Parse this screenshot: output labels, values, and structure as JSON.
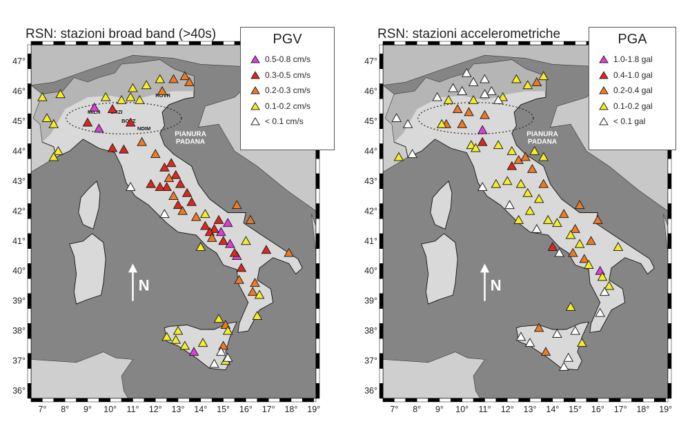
{
  "panels": [
    {
      "title": "RSN: stazioni broad band (>40s)",
      "legend_title": "PGV",
      "legend": [
        {
          "label": "0.5-0.8 cm/s",
          "color": "#e23cdc"
        },
        {
          "label": "0.3-0.5 cm/s",
          "color": "#e0261a"
        },
        {
          "label": "0.2-0.3 cm/s",
          "color": "#ef7a22"
        },
        {
          "label": "0.1-0.2 cm/s",
          "color": "#f4ee22"
        },
        {
          "label": "< 0.1 cm/s",
          "color": "#ffffff"
        }
      ],
      "map_labels": {
        "region_1": "PIANURA",
        "region_2": "PADANA",
        "north": "N"
      },
      "station_labels": [
        "MILN",
        "ORZI",
        "BOZZ",
        "NDIM",
        "ROVR"
      ]
    },
    {
      "title": "RSN: stazioni accelerometriche",
      "legend_title": "PGA",
      "legend": [
        {
          "label": "1.0-1.8 gal",
          "color": "#e23cdc"
        },
        {
          "label": "0.4-1.0 gal",
          "color": "#e0261a"
        },
        {
          "label": "0.2-0.4 gal",
          "color": "#ef7a22"
        },
        {
          "label": "0.1-0.2 gal",
          "color": "#f4ee22"
        },
        {
          "label": "< 0.1 gal",
          "color": "#ffffff"
        }
      ],
      "map_labels": {
        "region_1": "PIANURA",
        "region_2": "PADANA",
        "north": "N"
      },
      "station_labels": []
    }
  ],
  "axes": {
    "lon_ticks": [
      "7°",
      "8°",
      "9°",
      "10°",
      "11°",
      "12°",
      "13°",
      "14°",
      "15°",
      "16°",
      "17°",
      "18°",
      "19°"
    ],
    "lat_ticks": [
      "47°",
      "46°",
      "45°",
      "44°",
      "43°",
      "42°",
      "41°",
      "40°",
      "39°",
      "38°",
      "37°",
      "36°"
    ]
  },
  "colors": {
    "sea": "#858585",
    "land": "#d9d9d9",
    "alps": "#b5b5b5",
    "frame": "#000000"
  },
  "stations": [
    [
      {
        "lon": 9.3,
        "lat": 45.45,
        "c": 0
      },
      {
        "lon": 9.5,
        "lat": 44.75,
        "c": 0
      },
      {
        "lon": 14.9,
        "lat": 41.3,
        "c": 0
      },
      {
        "lon": 15.3,
        "lat": 40.9,
        "c": 0
      },
      {
        "lon": 15.6,
        "lat": 40.5,
        "c": 0
      },
      {
        "lon": 13.7,
        "lat": 37.3,
        "c": 0
      },
      {
        "lon": 15.2,
        "lat": 41.6,
        "c": 0
      },
      {
        "lon": 10.1,
        "lat": 45.4,
        "c": 1
      },
      {
        "lon": 10.9,
        "lat": 44.95,
        "c": 1
      },
      {
        "lon": 9.0,
        "lat": 44.95,
        "c": 1
      },
      {
        "lon": 10.1,
        "lat": 44.1,
        "c": 1
      },
      {
        "lon": 10.6,
        "lat": 44.05,
        "c": 1
      },
      {
        "lon": 12.4,
        "lat": 43.45,
        "c": 1
      },
      {
        "lon": 12.7,
        "lat": 43.6,
        "c": 1
      },
      {
        "lon": 12.9,
        "lat": 43.2,
        "c": 1
      },
      {
        "lon": 13.1,
        "lat": 42.9,
        "c": 1
      },
      {
        "lon": 12.5,
        "lat": 42.8,
        "c": 1
      },
      {
        "lon": 11.8,
        "lat": 42.9,
        "c": 1
      },
      {
        "lon": 13.4,
        "lat": 42.6,
        "c": 1
      },
      {
        "lon": 12.2,
        "lat": 42.8,
        "c": 1
      },
      {
        "lon": 13.6,
        "lat": 42.3,
        "c": 1
      },
      {
        "lon": 14.2,
        "lat": 41.5,
        "c": 1
      },
      {
        "lon": 14.6,
        "lat": 41.4,
        "c": 1
      },
      {
        "lon": 15.0,
        "lat": 41.0,
        "c": 1
      },
      {
        "lon": 15.5,
        "lat": 40.6,
        "c": 1
      },
      {
        "lon": 14.8,
        "lat": 41.7,
        "c": 1
      },
      {
        "lon": 14.4,
        "lat": 41.3,
        "c": 1
      },
      {
        "lon": 16.9,
        "lat": 40.7,
        "c": 1
      },
      {
        "lon": 15.8,
        "lat": 40.1,
        "c": 1
      },
      {
        "lon": 13.0,
        "lat": 42.2,
        "c": 1
      },
      {
        "lon": 12.8,
        "lat": 46.4,
        "c": 2
      },
      {
        "lon": 13.3,
        "lat": 46.5,
        "c": 2
      },
      {
        "lon": 13.5,
        "lat": 46.3,
        "c": 2
      },
      {
        "lon": 12.3,
        "lat": 46.0,
        "c": 2
      },
      {
        "lon": 11.4,
        "lat": 44.3,
        "c": 2
      },
      {
        "lon": 12.0,
        "lat": 43.9,
        "c": 2
      },
      {
        "lon": 12.6,
        "lat": 43.1,
        "c": 2
      },
      {
        "lon": 13.2,
        "lat": 42.0,
        "c": 2
      },
      {
        "lon": 13.8,
        "lat": 41.8,
        "c": 2
      },
      {
        "lon": 14.5,
        "lat": 41.1,
        "c": 2
      },
      {
        "lon": 15.6,
        "lat": 42.2,
        "c": 2
      },
      {
        "lon": 16.2,
        "lat": 41.7,
        "c": 2
      },
      {
        "lon": 15.7,
        "lat": 39.7,
        "c": 2
      },
      {
        "lon": 16.3,
        "lat": 39.3,
        "c": 2
      },
      {
        "lon": 16.4,
        "lat": 39.6,
        "c": 2
      },
      {
        "lon": 17.9,
        "lat": 40.6,
        "c": 2
      },
      {
        "lon": 15.1,
        "lat": 38.2,
        "c": 2
      },
      {
        "lon": 15.0,
        "lat": 37.5,
        "c": 2
      },
      {
        "lon": 14.0,
        "lat": 40.8,
        "c": 2
      },
      {
        "lon": 12.8,
        "lat": 42.5,
        "c": 2
      },
      {
        "lon": 7.2,
        "lat": 45.1,
        "c": 3
      },
      {
        "lon": 7.8,
        "lat": 45.9,
        "c": 3
      },
      {
        "lon": 7.0,
        "lat": 45.8,
        "c": 3
      },
      {
        "lon": 7.5,
        "lat": 44.9,
        "c": 3
      },
      {
        "lon": 7.7,
        "lat": 44.0,
        "c": 3
      },
      {
        "lon": 7.5,
        "lat": 43.8,
        "c": 3
      },
      {
        "lon": 10.5,
        "lat": 45.7,
        "c": 3
      },
      {
        "lon": 11.0,
        "lat": 46.1,
        "c": 3
      },
      {
        "lon": 10.9,
        "lat": 45.8,
        "c": 3
      },
      {
        "lon": 11.3,
        "lat": 45.7,
        "c": 3
      },
      {
        "lon": 11.6,
        "lat": 46.2,
        "c": 3
      },
      {
        "lon": 12.2,
        "lat": 46.4,
        "c": 3
      },
      {
        "lon": 9.8,
        "lat": 45.8,
        "c": 3
      },
      {
        "lon": 14.2,
        "lat": 41.9,
        "c": 3
      },
      {
        "lon": 16.0,
        "lat": 41.0,
        "c": 3
      },
      {
        "lon": 16.6,
        "lat": 39.2,
        "c": 3
      },
      {
        "lon": 16.5,
        "lat": 38.5,
        "c": 3
      },
      {
        "lon": 15.2,
        "lat": 38.0,
        "c": 3
      },
      {
        "lon": 14.8,
        "lat": 38.4,
        "c": 3
      },
      {
        "lon": 12.5,
        "lat": 37.8,
        "c": 3
      },
      {
        "lon": 12.9,
        "lat": 37.7,
        "c": 3
      },
      {
        "lon": 13.3,
        "lat": 37.5,
        "c": 3
      },
      {
        "lon": 14.1,
        "lat": 37.6,
        "c": 3
      },
      {
        "lon": 13.0,
        "lat": 38.0,
        "c": 3
      },
      {
        "lon": 14.0,
        "lat": 40.8,
        "c": 3
      },
      {
        "lon": 15.1,
        "lat": 37.0,
        "c": 3
      },
      {
        "lon": 10.9,
        "lat": 42.8,
        "c": 4
      },
      {
        "lon": 12.4,
        "lat": 41.9,
        "c": 4
      },
      {
        "lon": 14.9,
        "lat": 37.3,
        "c": 4
      },
      {
        "lon": 14.6,
        "lat": 36.9,
        "c": 4
      },
      {
        "lon": 15.2,
        "lat": 37.1,
        "c": 4
      }
    ],
    [
      {
        "lon": 10.9,
        "lat": 44.7,
        "c": 0
      },
      {
        "lon": 16.1,
        "lat": 40.0,
        "c": 0
      },
      {
        "lon": 10.9,
        "lat": 44.3,
        "c": 1
      },
      {
        "lon": 14.0,
        "lat": 40.8,
        "c": 1
      },
      {
        "lon": 12.2,
        "lat": 43.5,
        "c": 1
      },
      {
        "lon": 9.8,
        "lat": 45.4,
        "c": 2
      },
      {
        "lon": 10.3,
        "lat": 45.3,
        "c": 2
      },
      {
        "lon": 11.0,
        "lat": 45.2,
        "c": 2
      },
      {
        "lon": 9.3,
        "lat": 44.9,
        "c": 2
      },
      {
        "lon": 10.0,
        "lat": 44.9,
        "c": 2
      },
      {
        "lon": 12.5,
        "lat": 43.7,
        "c": 2
      },
      {
        "lon": 13.1,
        "lat": 43.4,
        "c": 2
      },
      {
        "lon": 13.6,
        "lat": 42.9,
        "c": 2
      },
      {
        "lon": 14.5,
        "lat": 41.9,
        "c": 2
      },
      {
        "lon": 15.0,
        "lat": 41.4,
        "c": 2
      },
      {
        "lon": 15.2,
        "lat": 42.2,
        "c": 2
      },
      {
        "lon": 15.7,
        "lat": 41.0,
        "c": 2
      },
      {
        "lon": 13.3,
        "lat": 46.3,
        "c": 2
      },
      {
        "lon": 12.8,
        "lat": 43.8,
        "c": 2
      },
      {
        "lon": 13.4,
        "lat": 38.1,
        "c": 2
      },
      {
        "lon": 13.7,
        "lat": 37.3,
        "c": 2
      },
      {
        "lon": 15.4,
        "lat": 40.4,
        "c": 2
      },
      {
        "lon": 16.0,
        "lat": 41.7,
        "c": 2
      },
      {
        "lon": 14.9,
        "lat": 40.6,
        "c": 2
      },
      {
        "lon": 7.2,
        "lat": 43.8,
        "c": 3
      },
      {
        "lon": 9.1,
        "lat": 44.9,
        "c": 3
      },
      {
        "lon": 10.4,
        "lat": 44.2,
        "c": 3
      },
      {
        "lon": 10.6,
        "lat": 44.1,
        "c": 3
      },
      {
        "lon": 11.6,
        "lat": 44.2,
        "c": 3
      },
      {
        "lon": 12.2,
        "lat": 44.0,
        "c": 3
      },
      {
        "lon": 13.2,
        "lat": 44.0,
        "c": 3
      },
      {
        "lon": 13.6,
        "lat": 43.8,
        "c": 3
      },
      {
        "lon": 12.0,
        "lat": 43.0,
        "c": 3
      },
      {
        "lon": 12.6,
        "lat": 42.9,
        "c": 3
      },
      {
        "lon": 11.5,
        "lat": 42.9,
        "c": 3
      },
      {
        "lon": 12.9,
        "lat": 42.6,
        "c": 3
      },
      {
        "lon": 13.4,
        "lat": 42.4,
        "c": 3
      },
      {
        "lon": 13.0,
        "lat": 42.0,
        "c": 3
      },
      {
        "lon": 12.5,
        "lat": 41.7,
        "c": 3
      },
      {
        "lon": 14.2,
        "lat": 41.6,
        "c": 3
      },
      {
        "lon": 14.8,
        "lat": 41.2,
        "c": 3
      },
      {
        "lon": 15.2,
        "lat": 40.9,
        "c": 3
      },
      {
        "lon": 15.6,
        "lat": 40.2,
        "c": 3
      },
      {
        "lon": 16.2,
        "lat": 39.8,
        "c": 3
      },
      {
        "lon": 16.9,
        "lat": 40.8,
        "c": 3
      },
      {
        "lon": 16.5,
        "lat": 39.5,
        "c": 3
      },
      {
        "lon": 14.8,
        "lat": 38.8,
        "c": 3
      },
      {
        "lon": 15.3,
        "lat": 37.6,
        "c": 3
      },
      {
        "lon": 12.4,
        "lat": 46.4,
        "c": 3
      },
      {
        "lon": 12.9,
        "lat": 46.2,
        "c": 3
      },
      {
        "lon": 13.6,
        "lat": 46.5,
        "c": 3
      },
      {
        "lon": 11.8,
        "lat": 45.8,
        "c": 3
      },
      {
        "lon": 10.5,
        "lat": 45.7,
        "c": 3
      },
      {
        "lon": 9.4,
        "lat": 45.7,
        "c": 3
      },
      {
        "lon": 13.8,
        "lat": 41.7,
        "c": 3
      },
      {
        "lon": 7.1,
        "lat": 45.1,
        "c": 4
      },
      {
        "lon": 7.6,
        "lat": 44.9,
        "c": 4
      },
      {
        "lon": 8.9,
        "lat": 45.8,
        "c": 4
      },
      {
        "lon": 9.6,
        "lat": 46.1,
        "c": 4
      },
      {
        "lon": 10.0,
        "lat": 46.0,
        "c": 4
      },
      {
        "lon": 10.5,
        "lat": 46.3,
        "c": 4
      },
      {
        "lon": 11.0,
        "lat": 46.4,
        "c": 4
      },
      {
        "lon": 11.3,
        "lat": 46.0,
        "c": 4
      },
      {
        "lon": 11.6,
        "lat": 45.7,
        "c": 4
      },
      {
        "lon": 11.0,
        "lat": 45.9,
        "c": 4
      },
      {
        "lon": 10.2,
        "lat": 46.6,
        "c": 4
      },
      {
        "lon": 7.8,
        "lat": 43.9,
        "c": 4
      },
      {
        "lon": 10.9,
        "lat": 42.8,
        "c": 4
      },
      {
        "lon": 12.1,
        "lat": 42.2,
        "c": 4
      },
      {
        "lon": 13.3,
        "lat": 41.4,
        "c": 4
      },
      {
        "lon": 14.3,
        "lat": 40.6,
        "c": 4
      },
      {
        "lon": 16.3,
        "lat": 39.3,
        "c": 4
      },
      {
        "lon": 16.1,
        "lat": 38.6,
        "c": 4
      },
      {
        "lon": 15.0,
        "lat": 38.0,
        "c": 4
      },
      {
        "lon": 14.2,
        "lat": 37.9,
        "c": 4
      },
      {
        "lon": 12.6,
        "lat": 37.8,
        "c": 4
      },
      {
        "lon": 13.0,
        "lat": 37.6,
        "c": 4
      },
      {
        "lon": 14.7,
        "lat": 37.1,
        "c": 4
      },
      {
        "lon": 14.5,
        "lat": 36.8,
        "c": 4
      }
    ]
  ]
}
